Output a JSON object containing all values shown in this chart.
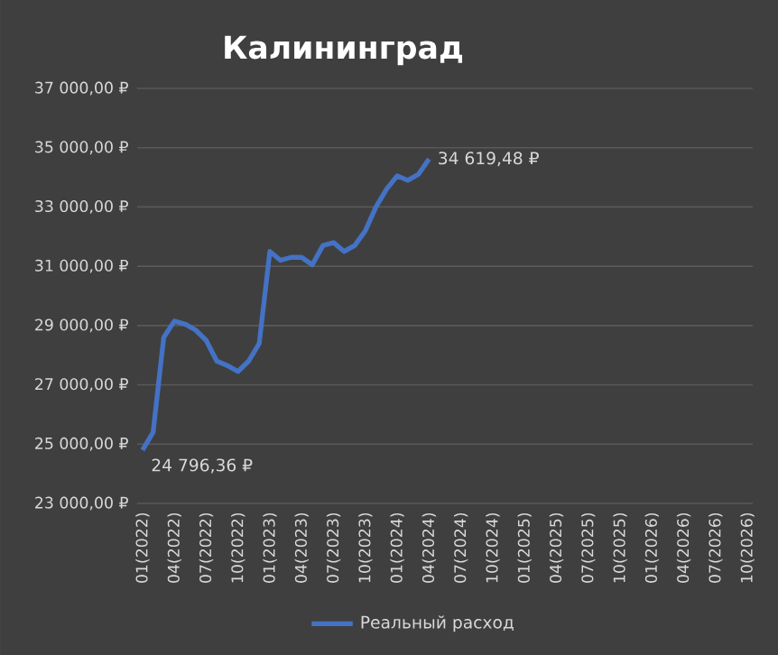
{
  "chart_data": {
    "type": "line",
    "title": "Калининград",
    "categories": [
      "01(2022)",
      null,
      null,
      "04(2022)",
      null,
      null,
      "07(2022)",
      null,
      null,
      "10(2022)",
      null,
      null,
      "01(2023)",
      null,
      null,
      "04(2023)",
      null,
      null,
      "07(2023)",
      null,
      null,
      "10(2023)",
      null,
      null,
      "01(2024)",
      null,
      null,
      "04(2024)",
      null,
      null,
      "07(2024)",
      null,
      null,
      "10(2024)",
      null,
      null,
      "01(2025)",
      null,
      null,
      "04(2025)",
      null,
      null,
      "07(2025)",
      null,
      null,
      "10(2025)",
      null,
      null,
      "01(2026)",
      null,
      null,
      "04(2026)",
      null,
      null,
      "07(2026)",
      null,
      null,
      "10(2026)"
    ],
    "series": [
      {
        "name": "Реальный расход",
        "color": "#4472c4",
        "values": [
          24796.36,
          25400,
          28600,
          29150,
          29050,
          28850,
          28500,
          27800,
          27650,
          27450,
          27800,
          28400,
          31500,
          31200,
          31300,
          31300,
          31050,
          31700,
          31800,
          31500,
          31700,
          32200,
          33000,
          33600,
          34050,
          33900,
          34100,
          34619.48,
          null,
          null,
          null,
          null,
          null,
          null,
          null,
          null,
          null,
          null,
          null,
          null,
          null,
          null,
          null,
          null,
          null,
          null,
          null,
          null,
          null,
          null,
          null,
          null,
          null,
          null,
          null,
          null,
          null,
          null
        ],
        "value_labels": [
          "24 796,36 ₽",
          null,
          null,
          null,
          null,
          null,
          null,
          null,
          null,
          null,
          null,
          null,
          null,
          null,
          null,
          null,
          null,
          null,
          null,
          null,
          null,
          null,
          null,
          null,
          null,
          null,
          null,
          "34 619,48 ₽",
          null,
          null,
          null,
          null,
          null,
          null,
          null,
          null,
          null,
          null,
          null,
          null,
          null,
          null,
          null,
          null,
          null,
          null,
          null,
          null,
          null,
          null,
          null,
          null,
          null,
          null,
          null,
          null,
          null,
          null
        ]
      }
    ],
    "ylim": [
      23000,
      37000
    ],
    "yticks": [
      {
        "value": 23000,
        "label": "23 000,00 ₽"
      },
      {
        "value": 25000,
        "label": "25 000,00 ₽"
      },
      {
        "value": 27000,
        "label": "27 000,00 ₽"
      },
      {
        "value": 29000,
        "label": "29 000,00 ₽"
      },
      {
        "value": 31000,
        "label": "31 000,00 ₽"
      },
      {
        "value": 33000,
        "label": "33 000,00 ₽"
      },
      {
        "value": 35000,
        "label": "35 000,00 ₽"
      },
      {
        "value": 37000,
        "label": "37 000,00 ₽"
      }
    ],
    "grid": "y",
    "legend": "bottom",
    "marker": "none",
    "line_style": "solid"
  }
}
